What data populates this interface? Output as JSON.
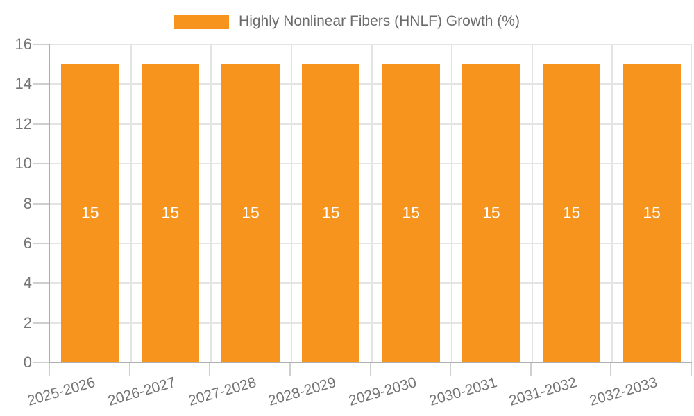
{
  "chart_data": {
    "type": "bar",
    "legend": "Highly Nonlinear Fibers (HNLF) Growth (%)",
    "categories": [
      "2025-2026",
      "2026-2027",
      "2027-2028",
      "2028-2029",
      "2029-2030",
      "2030-2031",
      "2031-2032",
      "2032-2033"
    ],
    "values": [
      15,
      15,
      15,
      15,
      15,
      15,
      15,
      15
    ],
    "bar_value_labels": [
      "15",
      "15",
      "15",
      "15",
      "15",
      "15",
      "15",
      "15"
    ],
    "ylim": [
      0,
      16
    ],
    "yticks": [
      0,
      2,
      4,
      6,
      8,
      10,
      12,
      14,
      16
    ],
    "grid": true,
    "legend_position": "top-center",
    "xlabel": "",
    "ylabel": "",
    "colors": {
      "bar": "#F7941E",
      "bar_label": "#FFFFFF",
      "grid": "#E4E4E4",
      "axis": "#AFAFAF",
      "tick": "#CFCFCF",
      "tick_text": "#757575",
      "legend_text": "#6B6B6B"
    }
  }
}
